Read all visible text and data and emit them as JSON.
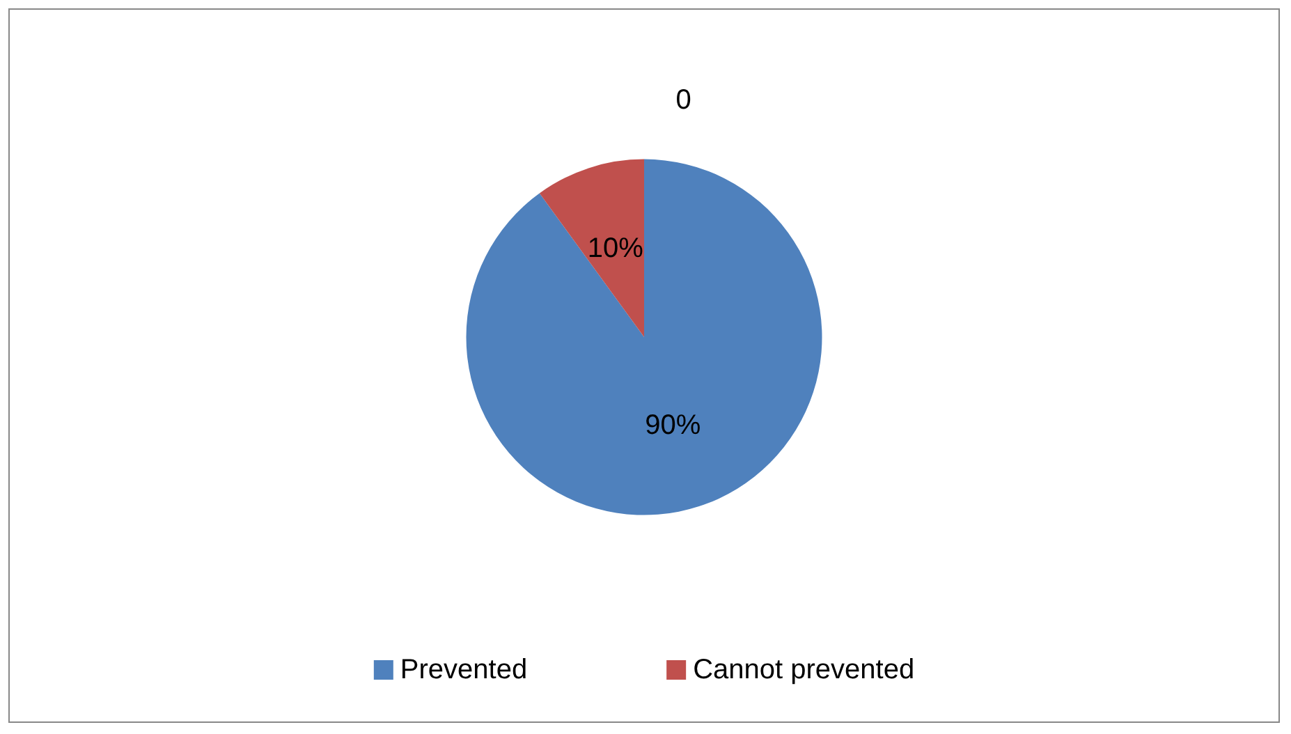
{
  "chart_data": {
    "type": "pie",
    "categories": [
      "Prevented",
      "Cannot prevented"
    ],
    "values": [
      90,
      10
    ],
    "colors": [
      "#4f81bd",
      "#c0504d"
    ],
    "value_labels": [
      "90%",
      "10%"
    ],
    "annotations": [
      "0"
    ],
    "legend": "bottom"
  }
}
